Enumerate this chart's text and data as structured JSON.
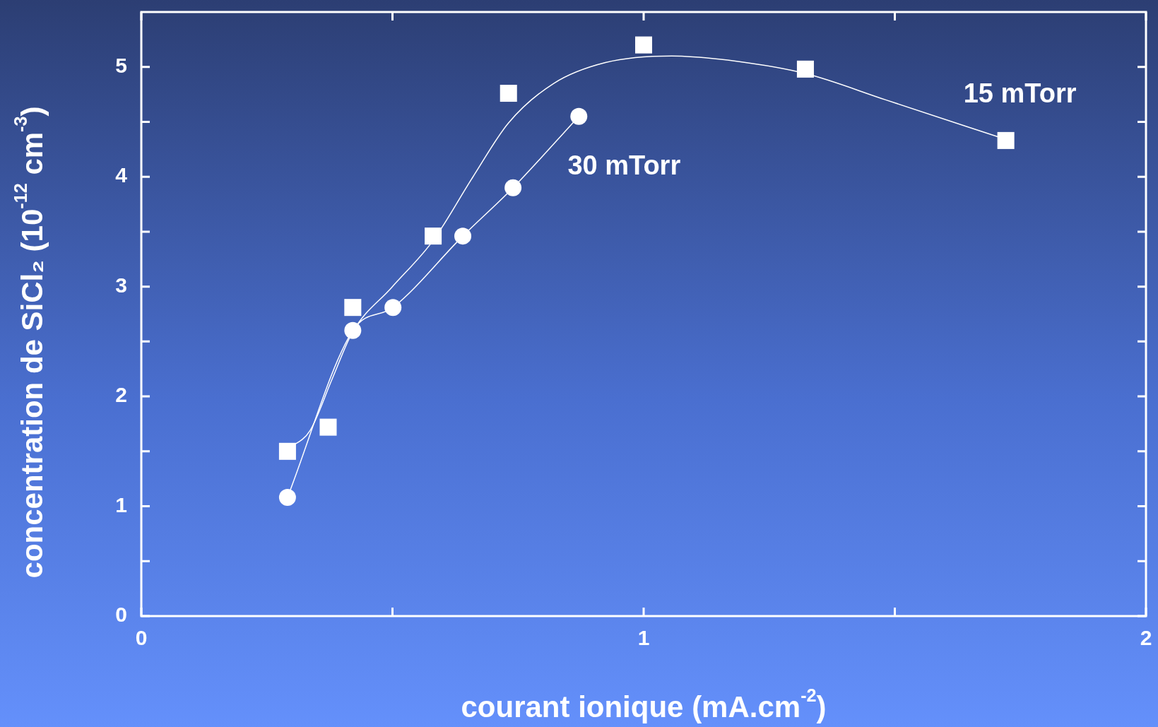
{
  "chart_data": {
    "type": "scatter",
    "xlabel": "courant ionique (mA.cm$^{-2}$)",
    "ylabel": "concentration de SiCl₂ (10$^{-12}$ cm$^{-3}$)",
    "xlim": [
      0,
      2
    ],
    "ylim": [
      0,
      5.5
    ],
    "xticks": [
      0,
      {
        "value": 0.5,
        "label": null
      },
      1,
      {
        "value": 1.5,
        "label": null
      },
      2
    ],
    "yticks": [
      0,
      {
        "value": 0.5,
        "label": null
      },
      1,
      {
        "value": 1.5,
        "label": null
      },
      2,
      {
        "value": 2.5,
        "label": null
      },
      3,
      {
        "value": 3.5,
        "label": null
      },
      4,
      {
        "value": 4.5,
        "label": null
      },
      5
    ],
    "grid": false,
    "legend": false,
    "series": [
      {
        "name": "15 mTorr",
        "type": "scatter",
        "marker": "square",
        "color": "#ffffff",
        "x": [
          0.291,
          0.372,
          0.421,
          0.581,
          0.731,
          1.0,
          1.322,
          1.721
        ],
        "values": [
          1.5,
          1.72,
          2.81,
          3.46,
          4.76,
          5.2,
          4.98,
          4.33
        ]
      },
      {
        "type": "line",
        "marker": "none",
        "color": "#ffffff",
        "x": [
          0.291,
          0.336,
          0.38,
          0.421,
          0.498,
          0.581,
          0.659,
          0.731,
          0.821,
          0.924,
          1.056,
          1.188,
          1.322,
          1.482,
          1.721
        ],
        "values": [
          1.52,
          1.69,
          2.16,
          2.59,
          2.99,
          3.42,
          3.99,
          4.49,
          4.85,
          5.04,
          5.1,
          5.05,
          4.94,
          4.7,
          4.34
        ]
      },
      {
        "name": "30 mTorr",
        "type": "line",
        "marker": "circle",
        "color": "#ffffff",
        "x": [
          0.291,
          0.421,
          0.501,
          0.64,
          0.74,
          0.871
        ],
        "values": [
          1.08,
          2.6,
          2.81,
          3.46,
          3.9,
          4.55
        ]
      }
    ]
  }
}
